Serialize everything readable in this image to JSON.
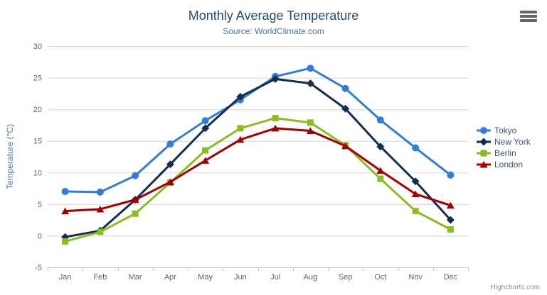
{
  "chart_data": {
    "type": "line",
    "title": "Monthly Average Temperature",
    "subtitle": "Source: WorldClimate.com",
    "ylabel": "Temperature (°C)",
    "xlabel": "",
    "ylim": [
      -5,
      30
    ],
    "ytick_interval": 5,
    "grid": true,
    "legend_position": "right",
    "categories": [
      "Jan",
      "Feb",
      "Mar",
      "Apr",
      "May",
      "Jun",
      "Jul",
      "Aug",
      "Sep",
      "Oct",
      "Nov",
      "Dec"
    ],
    "series": [
      {
        "name": "Tokyo",
        "color": "#2f7ed8",
        "marker": "circle",
        "values": [
          7.0,
          6.9,
          9.5,
          14.5,
          18.2,
          21.5,
          25.2,
          26.5,
          23.3,
          18.3,
          13.9,
          9.6
        ]
      },
      {
        "name": "New York",
        "color": "#142e4d",
        "marker": "diamond",
        "values": [
          -0.2,
          0.8,
          5.7,
          11.3,
          17.0,
          22.0,
          24.8,
          24.1,
          20.1,
          14.1,
          8.6,
          2.5
        ]
      },
      {
        "name": "Berlin",
        "color": "#8bbc21",
        "marker": "square",
        "values": [
          -0.9,
          0.6,
          3.5,
          8.4,
          13.5,
          17.0,
          18.6,
          17.9,
          14.3,
          9.0,
          3.9,
          1.0
        ]
      },
      {
        "name": "London",
        "color": "#a00000",
        "marker": "triangle",
        "values": [
          3.9,
          4.2,
          5.7,
          8.5,
          11.9,
          15.2,
          17.0,
          16.6,
          14.2,
          10.3,
          6.6,
          4.8
        ]
      }
    ],
    "axis_label_color": "#666666",
    "gridline_color": "#d8d8d8",
    "axis_line_color": "#c0d0e0"
  },
  "credit": {
    "label": "Highcharts.com"
  },
  "icons": {
    "context_menu": "hamburger-icon"
  }
}
